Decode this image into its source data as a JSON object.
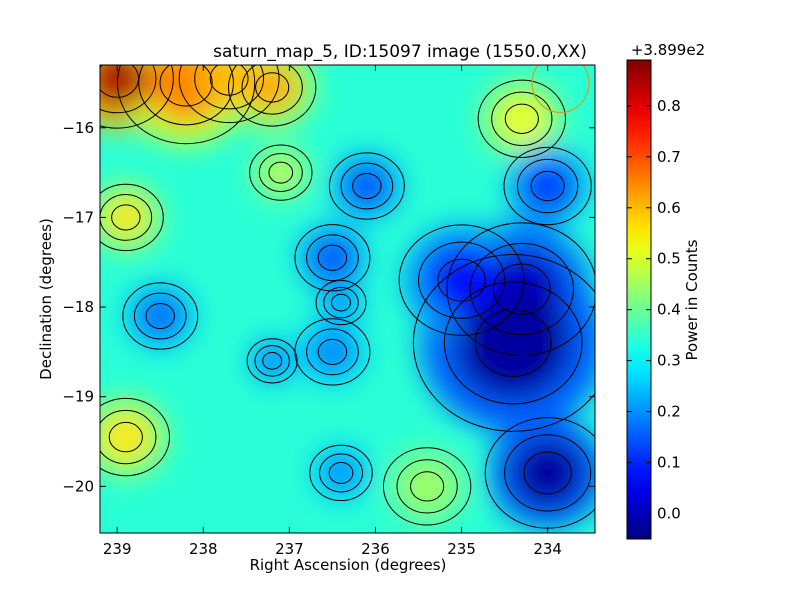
{
  "chart_data": {
    "type": "heatmap",
    "title": "saturn_map_5, ID:15097 image (1550.0,XX)",
    "xlabel": "Right Ascension (degrees)",
    "ylabel": "Declination (degrees)",
    "xlim": [
      239.2,
      233.45
    ],
    "ylim": [
      -20.52,
      -15.3
    ],
    "x_ticks": [
      239,
      238,
      237,
      236,
      235,
      234
    ],
    "y_ticks": [
      -16,
      -17,
      -18,
      -19,
      -20
    ],
    "colorbar": {
      "label": "Power in Counts",
      "offset_text": "+3.899e2",
      "range": [
        -0.05,
        0.89
      ],
      "ticks": [
        0.0,
        0.1,
        0.2,
        0.3,
        0.4,
        0.5,
        0.6,
        0.7,
        0.8
      ],
      "tick_labels": [
        "0.0",
        "0.1",
        "0.2",
        "0.3",
        "0.4",
        "0.5",
        "0.6",
        "0.7",
        "0.8"
      ],
      "colormap": "jet"
    },
    "contours": "black contour lines overlaid on the image",
    "features": [
      {
        "ra": 239.0,
        "dec": -15.45,
        "value": 0.85,
        "radius_deg": 0.45
      },
      {
        "ra": 238.2,
        "dec": -15.5,
        "value": 0.65,
        "radius_deg": 0.55
      },
      {
        "ra": 237.2,
        "dec": -15.55,
        "value": 0.62,
        "radius_deg": 0.35
      },
      {
        "ra": 237.7,
        "dec": -15.45,
        "value": 0.6,
        "radius_deg": 0.4
      },
      {
        "ra": 238.9,
        "dec": -17.0,
        "value": 0.56,
        "radius_deg": 0.3
      },
      {
        "ra": 238.9,
        "dec": -19.45,
        "value": 0.56,
        "radius_deg": 0.35
      },
      {
        "ra": 234.3,
        "dec": -15.9,
        "value": 0.52,
        "radius_deg": 0.35
      },
      {
        "ra": 235.4,
        "dec": -20.0,
        "value": 0.45,
        "radius_deg": 0.35
      },
      {
        "ra": 237.1,
        "dec": -16.5,
        "value": 0.48,
        "radius_deg": 0.25
      },
      {
        "ra": 236.1,
        "dec": -16.65,
        "value": 0.12,
        "radius_deg": 0.3
      },
      {
        "ra": 234.0,
        "dec": -16.65,
        "value": 0.1,
        "radius_deg": 0.35
      },
      {
        "ra": 236.5,
        "dec": -17.45,
        "value": 0.12,
        "radius_deg": 0.3
      },
      {
        "ra": 234.3,
        "dec": -17.8,
        "value": 0.02,
        "radius_deg": 0.6
      },
      {
        "ra": 234.4,
        "dec": -18.4,
        "value": -0.02,
        "radius_deg": 0.8
      },
      {
        "ra": 235.0,
        "dec": -17.7,
        "value": 0.08,
        "radius_deg": 0.5
      },
      {
        "ra": 234.0,
        "dec": -19.85,
        "value": -0.02,
        "radius_deg": 0.5
      },
      {
        "ra": 236.4,
        "dec": -19.85,
        "value": 0.18,
        "radius_deg": 0.25
      },
      {
        "ra": 238.5,
        "dec": -18.1,
        "value": 0.15,
        "radius_deg": 0.3
      },
      {
        "ra": 237.2,
        "dec": -18.6,
        "value": 0.15,
        "radius_deg": 0.2
      },
      {
        "ra": 236.5,
        "dec": -18.5,
        "value": 0.18,
        "radius_deg": 0.3
      },
      {
        "ra": 236.4,
        "dec": -17.95,
        "value": 0.18,
        "radius_deg": 0.2
      }
    ],
    "annotations": [
      {
        "type": "circle",
        "ra": 233.85,
        "dec": -15.5,
        "radius_deg": 0.33,
        "color": "#c9a227"
      }
    ],
    "grid": false
  }
}
